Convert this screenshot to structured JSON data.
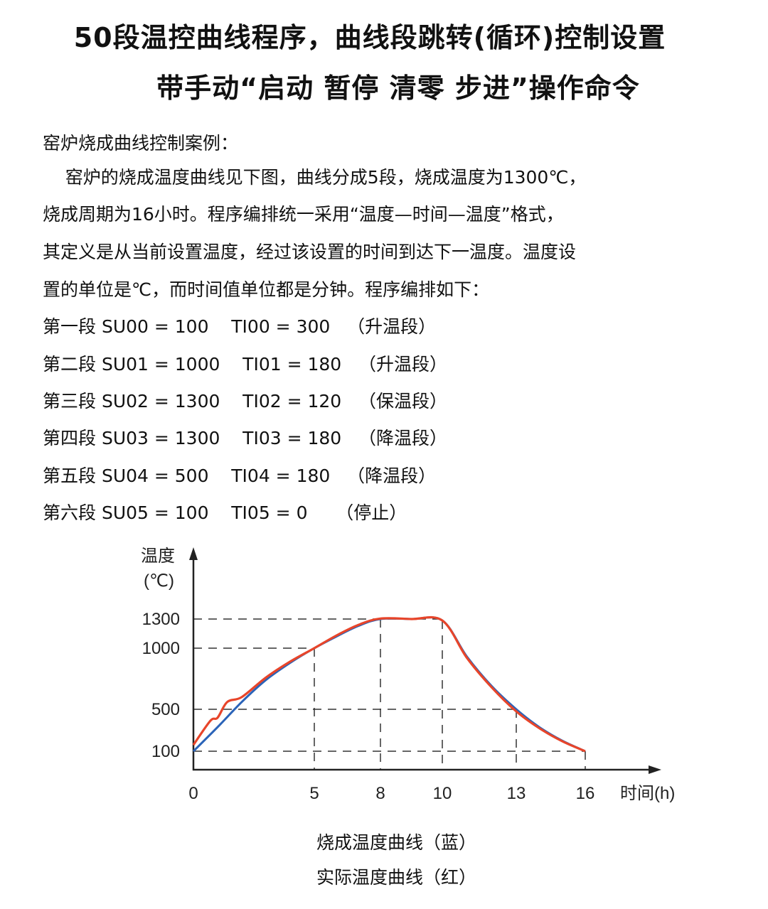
{
  "title": {
    "line1": "50段温控曲线程序，曲线段跳转(循环)控制设置",
    "line2": "带手动“启动  暂停  清零  步进”操作命令"
  },
  "body": {
    "heading": "窑炉烧成曲线控制案例：",
    "paragraph": [
      "    窑炉的烧成温度曲线见下图，曲线分成5段，烧成温度为1300℃，",
      "烧成周期为16小时。程序编排统一采用“温度—时间—温度”格式，",
      "其定义是从当前设置温度，经过该设置的时间到达下一温度。温度设",
      "置的单位是℃，而时间值单位都是分钟。程序编排如下："
    ],
    "segments": [
      "第一段 SU00 = 100    TI00 = 300   （升温段）",
      "第二段 SU01 = 1000    TI01 = 180   （升温段）",
      "第三段 SU02 = 1300    TI02 = 120   （保温段）",
      "第四段 SU03 = 1300    TI03 = 180   （降温段）",
      "第五段 SU04 = 500    TI04 = 180   （降温段）",
      "第六段 SU05 = 100    TI05 = 0     （停止）"
    ]
  },
  "chart_data": {
    "type": "line",
    "ylabel": "温度",
    "yunit": "(℃)",
    "xlabel": "时间(h)",
    "x_ticks": [
      0,
      5,
      8,
      10,
      13,
      16
    ],
    "y_ticks": [
      100,
      500,
      1000,
      1300
    ],
    "grid": "dashed reference lines at ticks",
    "series": [
      {
        "name": "烧成温度曲线（蓝）",
        "color": "#2a63b8",
        "points": [
          [
            0,
            100
          ],
          [
            1,
            330
          ],
          [
            2,
            560
          ],
          [
            3,
            740
          ],
          [
            4,
            880
          ],
          [
            5,
            1000
          ],
          [
            6,
            1120
          ],
          [
            7,
            1230
          ],
          [
            8,
            1300
          ],
          [
            9,
            1300
          ],
          [
            10,
            1285
          ],
          [
            11,
            930
          ],
          [
            12,
            690
          ],
          [
            13,
            500
          ],
          [
            14,
            330
          ],
          [
            15,
            200
          ],
          [
            16,
            100
          ]
        ]
      },
      {
        "name": "实际温度曲线（红）",
        "color": "#e8452a",
        "points": [
          [
            0,
            160
          ],
          [
            0.7,
            390
          ],
          [
            1,
            420
          ],
          [
            1.4,
            560
          ],
          [
            2,
            600
          ],
          [
            3,
            760
          ],
          [
            4,
            890
          ],
          [
            5,
            1000
          ],
          [
            6,
            1130
          ],
          [
            7,
            1240
          ],
          [
            8,
            1305
          ],
          [
            9,
            1300
          ],
          [
            10,
            1285
          ],
          [
            11,
            920
          ],
          [
            12,
            680
          ],
          [
            13,
            480
          ],
          [
            14,
            320
          ],
          [
            15,
            195
          ],
          [
            16,
            100
          ]
        ]
      }
    ],
    "captions": [
      "烧成温度曲线（蓝）",
      "实际温度曲线（红）"
    ]
  }
}
